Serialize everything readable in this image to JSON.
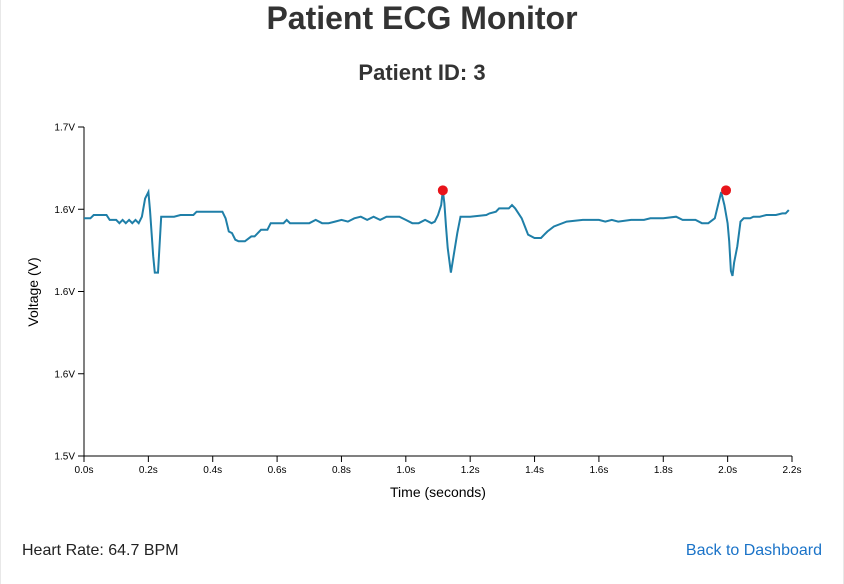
{
  "header": {
    "title": "Patient ECG Monitor",
    "patient_id": "Patient ID: 3"
  },
  "footer": {
    "heart_rate": "Heart Rate: 64.7 BPM",
    "back_link": "Back to Dashboard"
  },
  "colors": {
    "line": "#1f7fa8",
    "peak": "#e8141a",
    "link": "#1a73c8"
  },
  "chart_data": {
    "type": "line",
    "title": "",
    "xlabel": "Time (seconds)",
    "ylabel": "Voltage (V)",
    "xlim": [
      0,
      2.2
    ],
    "ylim": [
      1.5,
      1.7
    ],
    "x_ticks": [
      0,
      0.2,
      0.4,
      0.6,
      0.8,
      1.0,
      1.2,
      1.4,
      1.6,
      1.8,
      2.0,
      2.2
    ],
    "x_tick_labels": [
      "0.0s",
      "0.2s",
      "0.4s",
      "0.6s",
      "0.8s",
      "1.0s",
      "1.2s",
      "1.4s",
      "1.6s",
      "1.8s",
      "2.0s",
      "2.2s"
    ],
    "y_ticks": [
      1.5,
      1.55,
      1.6,
      1.65,
      1.7
    ],
    "y_tick_labels": [
      "1.5V",
      "1.6V",
      "1.6V",
      "1.6V",
      "1.7V"
    ],
    "series": [
      {
        "x": [
          0,
          0.02,
          0.03,
          0.07,
          0.08,
          0.1,
          0.11,
          0.12,
          0.13,
          0.14,
          0.15,
          0.16,
          0.17,
          0.18,
          0.19,
          0.2,
          0.205,
          0.21,
          0.215,
          0.22,
          0.23,
          0.24,
          0.25,
          0.28,
          0.3,
          0.34,
          0.35,
          0.38,
          0.39,
          0.43,
          0.44,
          0.45,
          0.46,
          0.47,
          0.48,
          0.5,
          0.52,
          0.53,
          0.55,
          0.57,
          0.58,
          0.6,
          0.62,
          0.63,
          0.64,
          0.66,
          0.7,
          0.72,
          0.74,
          0.76,
          0.78,
          0.8,
          0.82,
          0.84,
          0.86,
          0.88,
          0.9,
          0.92,
          0.94,
          0.96,
          0.98,
          1.0,
          1.02,
          1.04,
          1.06,
          1.08,
          1.09,
          1.1,
          1.11,
          1.115,
          1.12,
          1.125,
          1.13,
          1.14,
          1.15,
          1.16,
          1.17,
          1.18,
          1.2,
          1.25,
          1.26,
          1.28,
          1.29,
          1.3,
          1.32,
          1.33,
          1.34,
          1.35,
          1.36,
          1.37,
          1.38,
          1.4,
          1.42,
          1.43,
          1.44,
          1.46,
          1.5,
          1.55,
          1.6,
          1.62,
          1.64,
          1.66,
          1.7,
          1.74,
          1.76,
          1.8,
          1.84,
          1.86,
          1.9,
          1.92,
          1.94,
          1.96,
          1.97,
          1.98,
          1.99,
          2.0,
          2.005,
          2.01,
          2.015,
          2.02,
          2.03,
          2.04,
          2.05,
          2.07,
          2.08,
          2.1,
          2.12,
          2.15,
          2.17,
          2.18,
          2.19
        ],
        "y": [
          1.6445,
          1.6445,
          1.6465,
          1.6465,
          1.6435,
          1.6435,
          1.6415,
          1.6435,
          1.6415,
          1.6435,
          1.6415,
          1.6435,
          1.6415,
          1.6455,
          1.6565,
          1.6605,
          1.6495,
          1.6355,
          1.6215,
          1.6115,
          1.6115,
          1.6455,
          1.6455,
          1.6455,
          1.6465,
          1.6465,
          1.6485,
          1.6485,
          1.6485,
          1.6485,
          1.6445,
          1.6365,
          1.6355,
          1.6315,
          1.6305,
          1.6305,
          1.6335,
          1.6335,
          1.6375,
          1.6375,
          1.6415,
          1.6415,
          1.6415,
          1.6435,
          1.6415,
          1.6415,
          1.6415,
          1.6435,
          1.6415,
          1.6415,
          1.6425,
          1.6435,
          1.6425,
          1.6445,
          1.6455,
          1.6435,
          1.6455,
          1.6435,
          1.6455,
          1.6455,
          1.6455,
          1.6435,
          1.6415,
          1.6415,
          1.6435,
          1.6415,
          1.6425,
          1.6465,
          1.6525,
          1.6615,
          1.6535,
          1.6395,
          1.6265,
          1.6115,
          1.6235,
          1.6355,
          1.6455,
          1.6455,
          1.6455,
          1.6465,
          1.6475,
          1.6485,
          1.6505,
          1.6505,
          1.6505,
          1.6525,
          1.6505,
          1.6475,
          1.6445,
          1.6395,
          1.6345,
          1.6325,
          1.6325,
          1.6345,
          1.6365,
          1.6395,
          1.6425,
          1.6435,
          1.6435,
          1.6425,
          1.6435,
          1.6425,
          1.6435,
          1.6435,
          1.6445,
          1.6445,
          1.6455,
          1.6435,
          1.6435,
          1.6415,
          1.6415,
          1.6445,
          1.6525,
          1.6605,
          1.6525,
          1.6415,
          1.6305,
          1.6125,
          1.6095,
          1.6175,
          1.6275,
          1.6425,
          1.6445,
          1.6445,
          1.6455,
          1.6455,
          1.6465,
          1.6465,
          1.6475,
          1.6475,
          1.6495
        ]
      }
    ],
    "peaks": [
      {
        "x": 1.115,
        "y": 1.6615
      },
      {
        "x": 1.995,
        "y": 1.6615
      }
    ]
  }
}
